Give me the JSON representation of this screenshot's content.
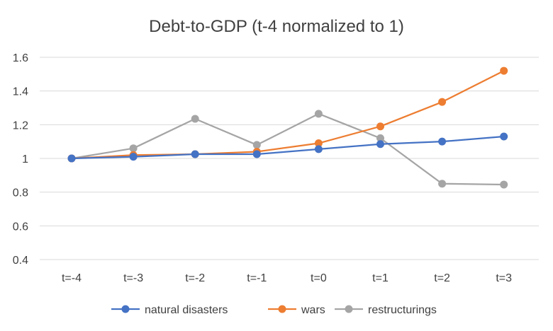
{
  "chart_data": {
    "type": "line",
    "title": "Debt-to-GDP (t-4 normalized to 1)",
    "xlabel": "",
    "ylabel": "",
    "categories": [
      "t=-4",
      "t=-3",
      "t=-2",
      "t=-1",
      "t=0",
      "t=1",
      "t=2",
      "t=3"
    ],
    "ylim": [
      0.4,
      1.6
    ],
    "yticks": [
      0.4,
      0.6,
      0.8,
      1,
      1.2,
      1.4,
      1.6
    ],
    "ytick_labels": [
      "0.4",
      "0.6",
      "0.8",
      "1",
      "1.2",
      "1.4",
      "1.6"
    ],
    "grid": true,
    "legend_position": "bottom",
    "series": [
      {
        "name": "natural disasters",
        "color": "#4472c4",
        "values": [
          1.0,
          1.01,
          1.025,
          1.025,
          1.055,
          1.085,
          1.1,
          1.13
        ]
      },
      {
        "name": "wars",
        "color": "#ed7d31",
        "values": [
          1.0,
          1.02,
          1.025,
          1.04,
          1.09,
          1.19,
          1.335,
          1.52
        ]
      },
      {
        "name": "restructurings",
        "color": "#a5a5a5",
        "values": [
          1.0,
          1.06,
          1.235,
          1.08,
          1.265,
          1.12,
          0.85,
          0.845
        ]
      }
    ]
  }
}
